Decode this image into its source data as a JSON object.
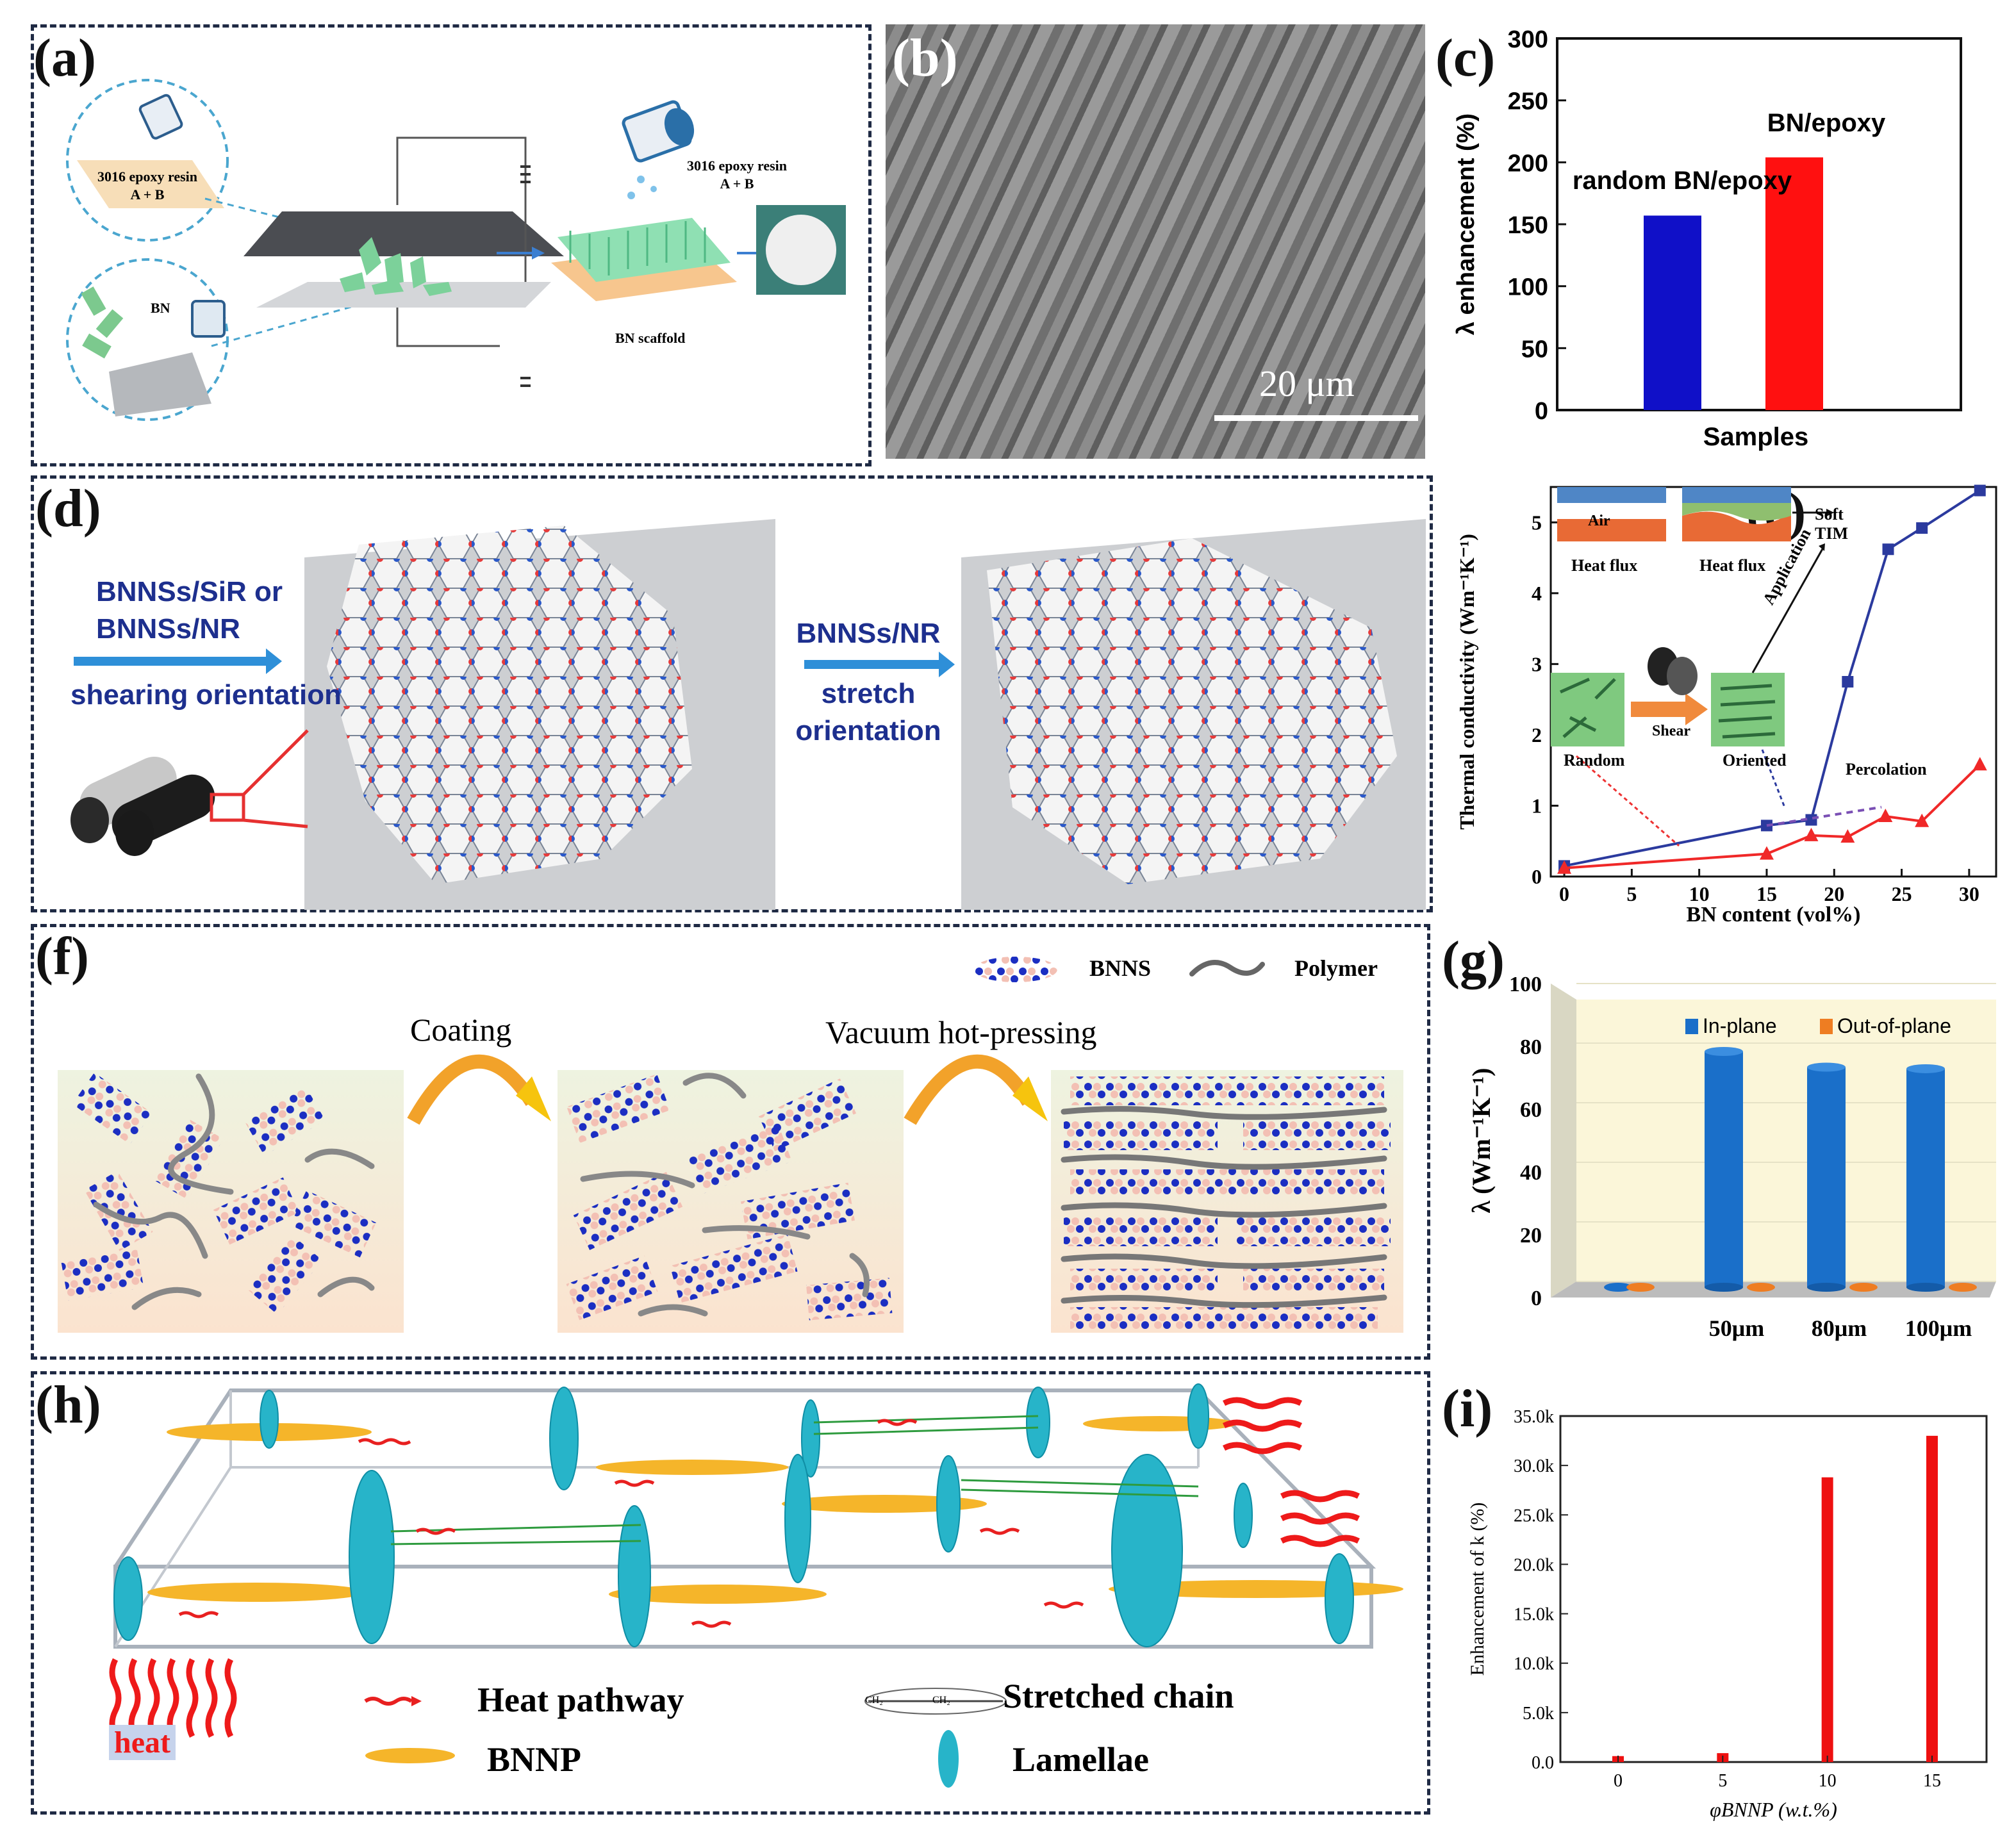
{
  "panels": {
    "a": {
      "label": "(a)",
      "resin_label_1_line1": "3016 epoxy resin",
      "resin_label_1_line2": "A + B",
      "resin_label_2_line1": "3016 epoxy resin",
      "resin_label_2_line2": "A + B",
      "bn_label": "BN",
      "scaffold_label": "BN scaffold"
    },
    "b": {
      "label": "(b)",
      "scale_bar": "20 μm"
    },
    "c": {
      "label": "(c)",
      "bar_labels": [
        "random BN/epoxy",
        "BN/epoxy"
      ]
    },
    "d": {
      "label": "(d)",
      "step1_line1": "BNNSs/SiR or",
      "step1_line2": "BNNSs/NR",
      "step1_line3": "shearing orientation",
      "step2_line1": "BNNSs/NR",
      "step2_line2": "stretch",
      "step2_line3": "orientation"
    },
    "e": {
      "label": "(e)",
      "inset_air": "Air",
      "inset_heat_flux_1": "Heat flux",
      "inset_heat_flux_2": "Heat flux",
      "inset_soft_tim_1": "Soft",
      "inset_soft_tim_2": "TIM",
      "inset_application": "Application",
      "inset_shear": "Shear",
      "inset_random": "Random",
      "inset_oriented": "Oriented",
      "inset_percolation": "Percolation"
    },
    "f": {
      "label": "(f)",
      "legend_bnns": "BNNS",
      "legend_polymer": "Polymer",
      "step_coating": "Coating",
      "step_vacuum": "Vacuum hot-pressing"
    },
    "g": {
      "label": "(g)"
    },
    "h": {
      "label": "(h)",
      "heat_label": "heat",
      "legend_heat_pathway": "Heat pathway",
      "legend_stretched_chain": "Stretched chain",
      "legend_ch2_left": "CH₂",
      "legend_ch2_right": "CH₂",
      "legend_bnnp": "BNNP",
      "legend_lamellae": "Lamellae"
    },
    "i": {
      "label": "(i)"
    }
  },
  "chart_data": [
    {
      "id": "c",
      "type": "bar",
      "categories": [
        "random BN/epoxy",
        "BN/epoxy"
      ],
      "values": [
        157,
        204
      ],
      "colors": [
        "#1010c8",
        "#ff1010"
      ],
      "title": "",
      "xlabel": "Samples",
      "ylabel": "λ enhancement (%)",
      "ylim": [
        0,
        300
      ],
      "yticks": [
        "0",
        "50",
        "100",
        "150",
        "200",
        "250",
        "300"
      ]
    },
    {
      "id": "e",
      "type": "line",
      "xlabel": "BN content (vol%)",
      "ylabel": "Thermal conductivity (Wm⁻¹K⁻¹)",
      "xlim": [
        -1,
        32
      ],
      "ylim": [
        0,
        5.5
      ],
      "xticks": [
        "0",
        "5",
        "10",
        "15",
        "20",
        "25",
        "30"
      ],
      "yticks": [
        "0",
        "1",
        "2",
        "3",
        "4",
        "5"
      ],
      "series": [
        {
          "name": "oriented",
          "color": "#2b3a9e",
          "marker": "square",
          "x": [
            0,
            15,
            18.3,
            21,
            24,
            26.5,
            30.8
          ],
          "y": [
            0.15,
            0.72,
            0.8,
            2.75,
            4.62,
            4.92,
            5.45
          ]
        },
        {
          "name": "random",
          "color": "#f02828",
          "marker": "triangle",
          "x": [
            0,
            15,
            18.3,
            21,
            23.8,
            26.5,
            30.8
          ],
          "y": [
            0.12,
            0.32,
            0.58,
            0.56,
            0.85,
            0.78,
            1.58
          ]
        }
      ]
    },
    {
      "id": "g",
      "type": "bar",
      "categories": [
        "",
        "50μm",
        "80μm",
        "100μm"
      ],
      "series": [
        {
          "name": "In-plane",
          "color": "#1a6fc9",
          "values": [
            0.5,
            80,
            75,
            74.5
          ]
        },
        {
          "name": "Out-of-plane",
          "color": "#ee7d22",
          "values": [
            0.5,
            0.6,
            0.6,
            0.6
          ]
        }
      ],
      "ylabel": "λ (Wm⁻¹K⁻¹)",
      "ylim": [
        0,
        100
      ],
      "yticks": [
        "0",
        "20",
        "40",
        "60",
        "80",
        "100"
      ]
    },
    {
      "id": "i",
      "type": "bar",
      "categories": [
        "0",
        "5",
        "10",
        "15"
      ],
      "values": [
        600,
        900,
        28800,
        33000
      ],
      "color": "#ee1010",
      "xlabel": "φBNNP (w.t.%)",
      "ylabel": "Enhancement of k (%)",
      "ylim": [
        0,
        35000
      ],
      "yticks": [
        "0.0",
        "5.0k",
        "10.0k",
        "15.0k",
        "20.0k",
        "25.0k",
        "30.0k",
        "35.0k"
      ]
    }
  ]
}
